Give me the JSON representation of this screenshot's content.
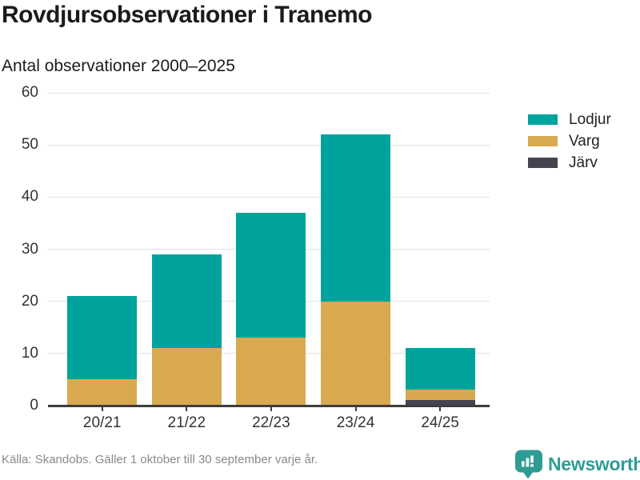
{
  "header": {
    "title": "Rovdjursobservationer i Tranemo",
    "subtitle": "Antal observationer 2000–2025"
  },
  "legend": {
    "items": [
      {
        "label": "Lodjur",
        "color": "#00a39b"
      },
      {
        "label": "Varg",
        "color": "#d9a94f"
      },
      {
        "label": "Järv",
        "color": "#454350"
      }
    ]
  },
  "chart_data": {
    "type": "bar",
    "stacked": true,
    "stack_order_bottom_to_top": [
      "Järv",
      "Varg",
      "Lodjur"
    ],
    "categories": [
      "20/21",
      "21/22",
      "22/23",
      "23/24",
      "24/25"
    ],
    "series": [
      {
        "name": "Lodjur",
        "color": "#00a39b",
        "values": [
          16,
          18,
          24,
          32,
          8
        ]
      },
      {
        "name": "Varg",
        "color": "#d9a94f",
        "values": [
          5,
          11,
          13,
          20,
          2
        ]
      },
      {
        "name": "Järv",
        "color": "#454350",
        "values": [
          0,
          0,
          0,
          0,
          1
        ]
      }
    ],
    "totals": [
      21,
      29,
      37,
      52,
      11
    ],
    "title": "Rovdjursobservationer i Tranemo",
    "subtitle": "Antal observationer 2000–2025",
    "xlabel": "",
    "ylabel": "Antal observationer",
    "ylim": [
      0,
      60
    ],
    "yticks": [
      0,
      10,
      20,
      30,
      40,
      50,
      60
    ],
    "grid": true,
    "legend_position": "right",
    "colors": {
      "grid": "#e2e2e2",
      "axis": "#3d3d3d",
      "tick_text": "#333333"
    }
  },
  "footer": {
    "source": "Källa: Skandobs. Gäller 1 oktober till 30 september varje år."
  },
  "branding": {
    "name": "Newsworthy",
    "color": "#2f9c94",
    "icon": "bar-chart-speech-bubble-icon"
  }
}
